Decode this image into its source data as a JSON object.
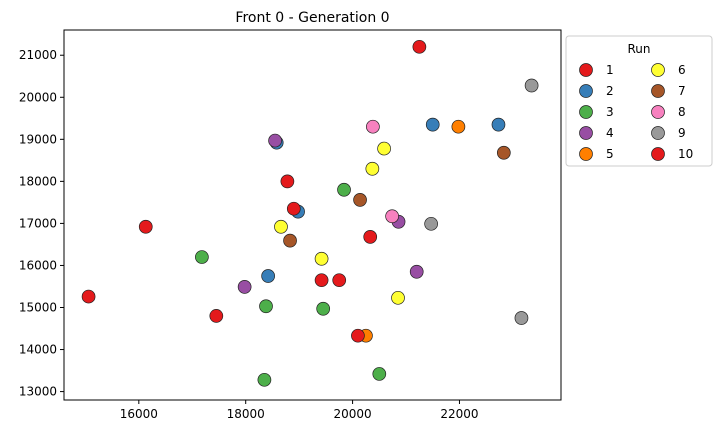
{
  "chart_data": {
    "type": "scatter",
    "title": "Front 0 -  Generation 0",
    "xlabel": "",
    "ylabel": "",
    "xlim": [
      14600,
      23900
    ],
    "ylim": [
      12800,
      21600
    ],
    "x_ticks": [
      16000,
      18000,
      20000,
      22000
    ],
    "y_ticks": [
      13000,
      14000,
      15000,
      16000,
      17000,
      18000,
      19000,
      20000,
      21000
    ],
    "grid": false,
    "legend": {
      "title": "Run",
      "placement": "outside-top-right",
      "columns": 2
    },
    "series": [
      {
        "name": "1",
        "color": "#e41a1c",
        "points": [
          [
            15060,
            15260
          ],
          [
            17450,
            14800
          ],
          [
            21250,
            21200
          ]
        ]
      },
      {
        "name": "2",
        "color": "#377eb8",
        "points": [
          [
            18420,
            15750
          ],
          [
            18580,
            18920
          ],
          [
            18980,
            17280
          ],
          [
            21500,
            19350
          ],
          [
            22730,
            19350
          ]
        ]
      },
      {
        "name": "3",
        "color": "#4daf4a",
        "points": [
          [
            17180,
            16200
          ],
          [
            18380,
            15030
          ],
          [
            18350,
            13280
          ],
          [
            19450,
            14970
          ],
          [
            19840,
            17800
          ],
          [
            20500,
            13420
          ]
        ]
      },
      {
        "name": "4",
        "color": "#984ea3",
        "points": [
          [
            17980,
            15490
          ],
          [
            18550,
            18970
          ],
          [
            20860,
            17040
          ],
          [
            21200,
            15850
          ]
        ]
      },
      {
        "name": "5",
        "color": "#ff7f00",
        "points": [
          [
            20250,
            14330
          ],
          [
            21980,
            19300
          ]
        ]
      },
      {
        "name": "6",
        "color": "#ffff33",
        "points": [
          [
            18660,
            16920
          ],
          [
            19420,
            16160
          ],
          [
            20370,
            18300
          ],
          [
            20590,
            18780
          ],
          [
            20850,
            15230
          ]
        ]
      },
      {
        "name": "7",
        "color": "#a65628",
        "points": [
          [
            18830,
            16590
          ],
          [
            20140,
            17560
          ],
          [
            22830,
            18680
          ]
        ]
      },
      {
        "name": "8",
        "color": "#f781bf",
        "points": [
          [
            20380,
            19300
          ],
          [
            20740,
            17170
          ]
        ]
      },
      {
        "name": "9",
        "color": "#999999",
        "points": [
          [
            21470,
            16990
          ],
          [
            23160,
            14750
          ],
          [
            23350,
            20280
          ]
        ]
      },
      {
        "name": "10",
        "color": "#e41a1c",
        "points": [
          [
            16130,
            16920
          ],
          [
            18780,
            18000
          ],
          [
            18900,
            17350
          ],
          [
            19420,
            15650
          ],
          [
            19750,
            15650
          ],
          [
            20330,
            16680
          ],
          [
            20100,
            14330
          ]
        ]
      }
    ]
  }
}
